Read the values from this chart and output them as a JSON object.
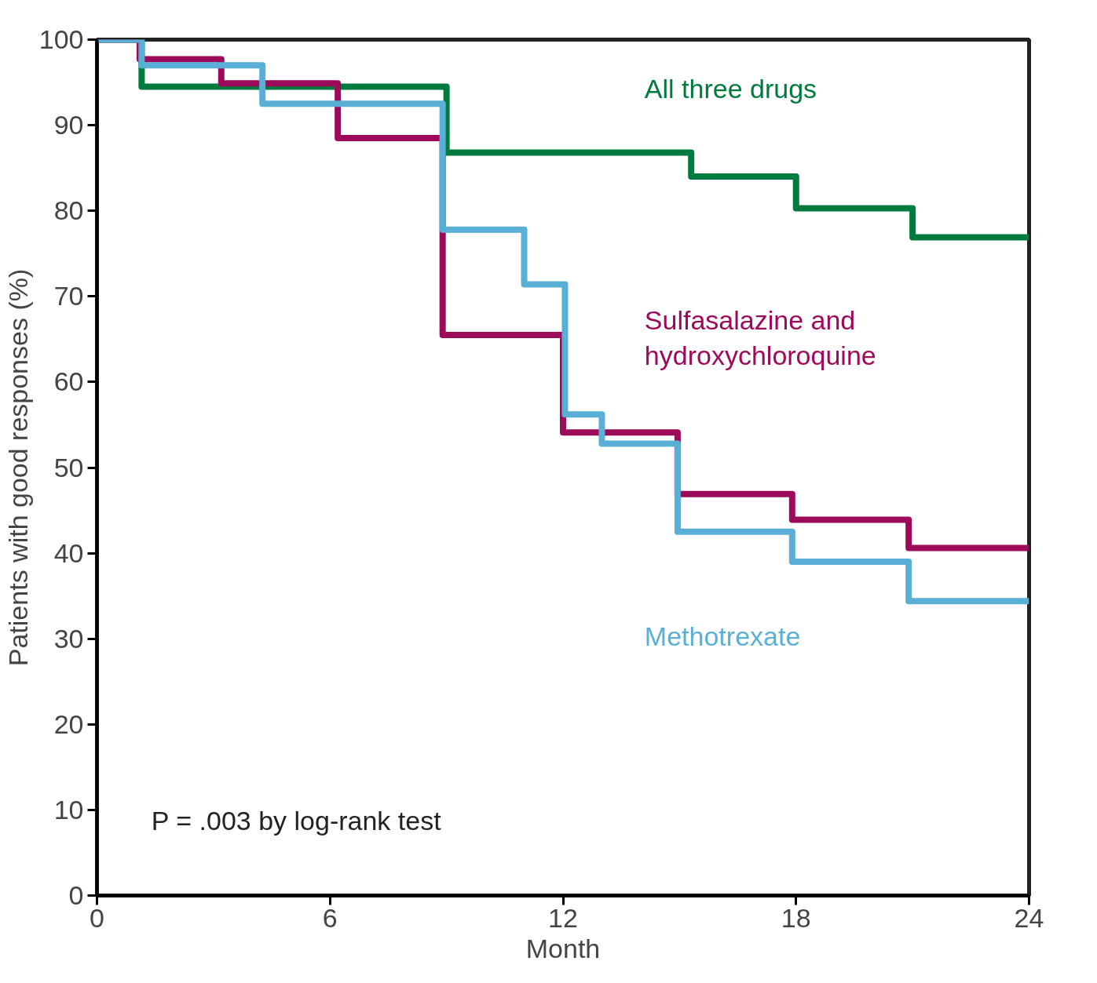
{
  "chart_data": {
    "type": "step",
    "xlabel": "Month",
    "ylabel": "Patients with good responses (%)",
    "xlim": [
      0,
      24
    ],
    "ylim": [
      0,
      100
    ],
    "xticks": [
      0,
      6,
      12,
      18,
      24
    ],
    "yticks": [
      0,
      10,
      20,
      30,
      40,
      50,
      60,
      70,
      80,
      90,
      100
    ],
    "grid": false,
    "line_style": "solid",
    "marker": "none",
    "annotations": [
      {
        "text": "P = .003 by log-rank test"
      }
    ],
    "series": [
      {
        "name": "All three drugs",
        "color": "#007a3d",
        "x": [
          0,
          1.15,
          9.0,
          15.3,
          18.0,
          21.0,
          24
        ],
        "values": [
          100,
          94.5,
          86.8,
          84.0,
          80.3,
          76.9,
          76.9
        ]
      },
      {
        "name": "Sulfasalazine and\nhydroxychloroquine",
        "color": "#9e0a5a",
        "x": [
          0,
          1.1,
          3.2,
          6.2,
          8.9,
          12.0,
          14.95,
          17.9,
          20.9,
          24
        ],
        "values": [
          100,
          97.7,
          94.9,
          88.5,
          65.5,
          54.1,
          46.9,
          43.9,
          40.6,
          40.6
        ]
      },
      {
        "name": "Methotrexate",
        "color": "#5aafd6",
        "x": [
          0,
          1.15,
          4.26,
          8.9,
          11.0,
          12.05,
          13.0,
          14.95,
          17.9,
          20.9,
          24
        ],
        "values": [
          100,
          97.0,
          92.5,
          77.8,
          71.4,
          56.2,
          52.8,
          42.5,
          39.0,
          34.4,
          34.4
        ]
      }
    ]
  }
}
